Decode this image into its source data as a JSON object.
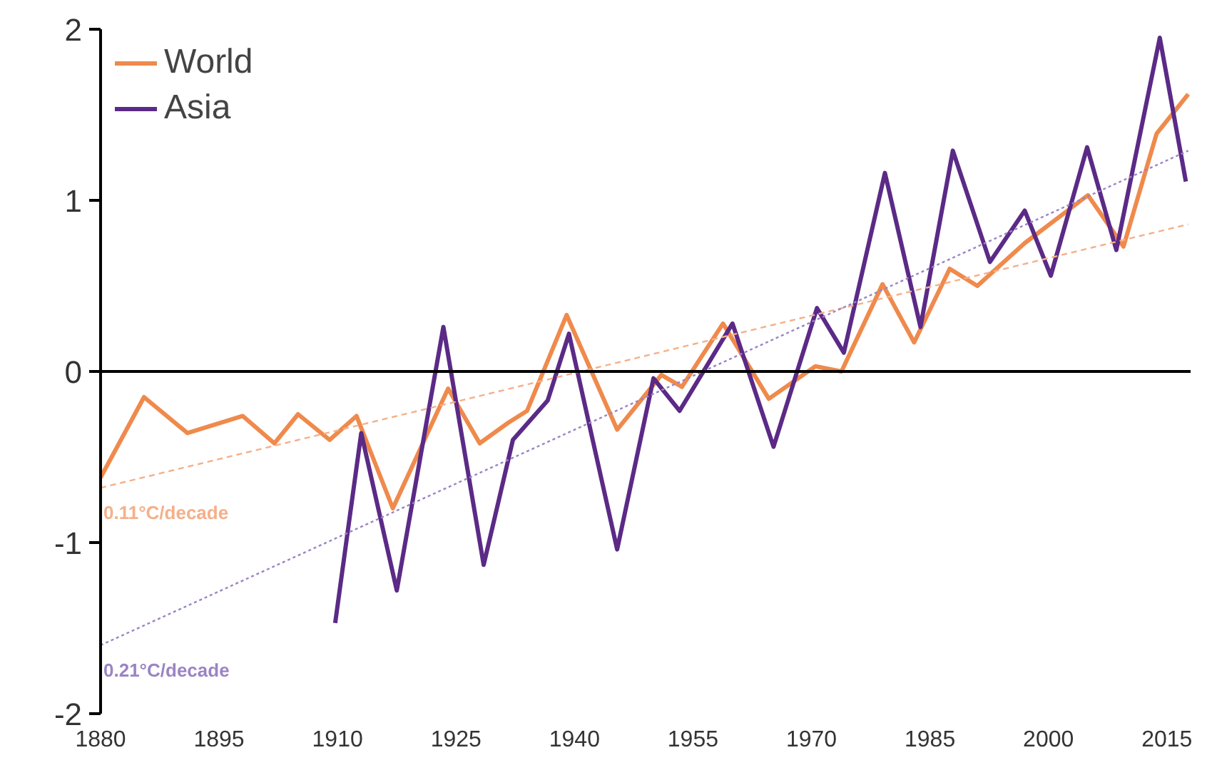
{
  "chart_data": {
    "type": "line",
    "xlim": [
      1880,
      2018
    ],
    "ylim": [
      -2,
      2
    ],
    "xticks": [
      1880,
      1895,
      1910,
      1925,
      1940,
      1955,
      1970,
      1985,
      2000,
      2015
    ],
    "yticks": [
      -2,
      -1,
      0,
      1,
      2
    ],
    "grid": false,
    "legend": "top left",
    "marker": "none",
    "line_style": "solid",
    "series": [
      {
        "name": "World",
        "color": "#ef8a4c",
        "x": [
          1880,
          1885.5,
          1891,
          1898,
          1902,
          1905,
          1909,
          1912.4,
          1917,
          1924,
          1928,
          1931.6,
          1934,
          1939,
          1945.4,
          1951,
          1953.6,
          1958.8,
          1964.6,
          1970.5,
          1973.8,
          1979,
          1983,
          1987.5,
          1991,
          1997,
          2005,
          2009.5,
          2013.7,
          2017.7
        ],
        "values": [
          -0.62,
          -0.15,
          -0.36,
          -0.26,
          -0.42,
          -0.25,
          -0.4,
          -0.26,
          -0.8,
          -0.1,
          -0.42,
          -0.3,
          -0.23,
          0.33,
          -0.34,
          -0.02,
          -0.09,
          0.28,
          -0.16,
          0.03,
          0,
          0.51,
          0.17,
          0.6,
          0.5,
          0.75,
          1.03,
          0.73,
          1.39,
          1.62
        ]
      },
      {
        "name": "Asia",
        "color": "#5b2a86",
        "x": [
          1909.7,
          1913,
          1917.5,
          1923.4,
          1928.5,
          1932.2,
          1936.6,
          1939.3,
          1945.4,
          1950,
          1953.3,
          1960,
          1965.2,
          1970.7,
          1974.1,
          1979.3,
          1983.8,
          1987.9,
          1992.6,
          1997,
          2000.3,
          2004.9,
          2008.6,
          2014.1,
          2017.4
        ],
        "values": [
          -1.47,
          -0.36,
          -1.28,
          0.26,
          -1.13,
          -0.4,
          -0.17,
          0.22,
          -1.04,
          -0.04,
          -0.23,
          0.28,
          -0.44,
          0.37,
          0.11,
          1.16,
          0.26,
          1.29,
          0.64,
          0.94,
          0.56,
          1.31,
          0.71,
          1.95,
          1.11
        ]
      },
      {
        "type": "line",
        "color": "#f4b08a",
        "line_style": "dashed",
        "x": [
          1880,
          2017.7
        ],
        "values": [
          -0.68,
          0.86
        ]
      },
      {
        "type": "line",
        "color": "#9b84c4",
        "line_style": "dotted",
        "x": [
          1880,
          2017.7
        ],
        "values": [
          -1.6,
          1.29
        ]
      }
    ],
    "ref_lines": [
      {
        "axis": "y",
        "value": 0,
        "color": "#000000"
      }
    ],
    "annotations": [
      "0.11°C/decade",
      "0.21°C/decade"
    ]
  }
}
